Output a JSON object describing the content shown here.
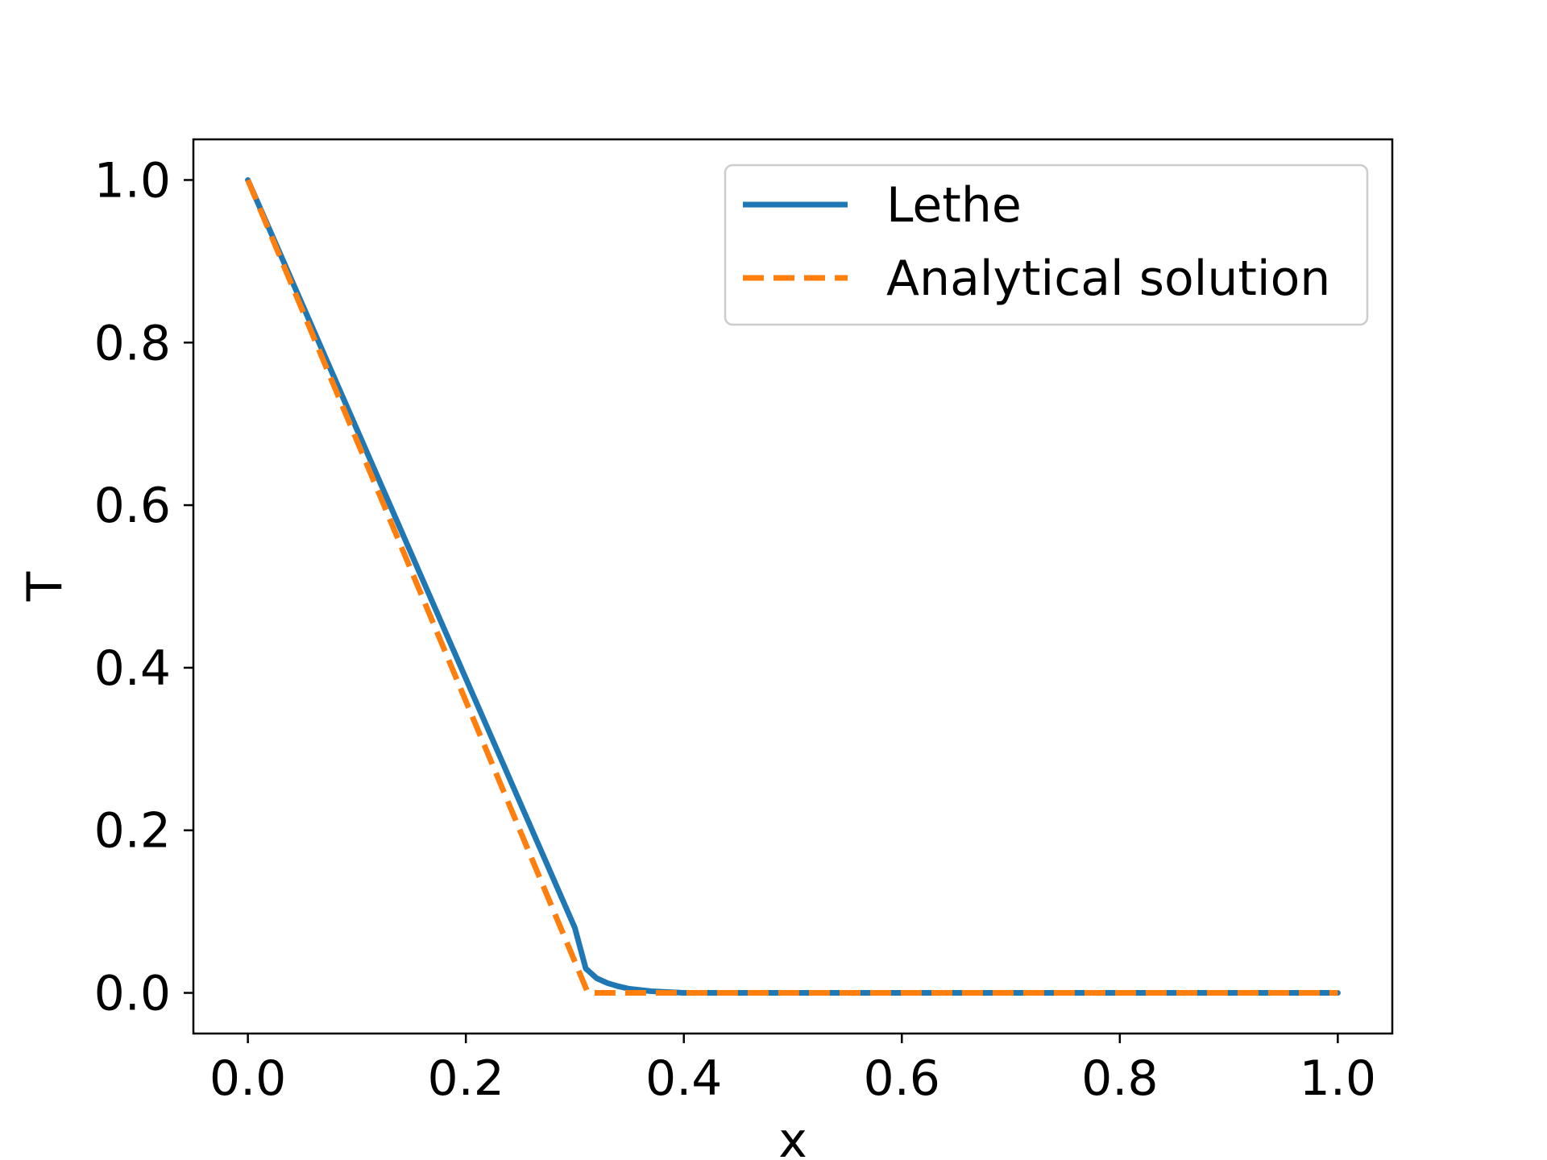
{
  "chart_data": {
    "type": "line",
    "title": "",
    "xlabel": "x",
    "ylabel": "T",
    "xlim": [
      -0.05,
      1.05
    ],
    "ylim": [
      -0.05,
      1.05
    ],
    "grid": false,
    "legend_position": "top-right",
    "xticks": [
      0.0,
      0.2,
      0.4,
      0.6,
      0.8,
      1.0
    ],
    "xtick_labels": [
      "0.0",
      "0.2",
      "0.4",
      "0.6",
      "0.8",
      "1.0"
    ],
    "yticks": [
      0.0,
      0.2,
      0.4,
      0.6,
      0.8,
      1.0
    ],
    "ytick_labels": [
      "0.0",
      "0.2",
      "0.4",
      "0.6",
      "0.8",
      "1.0"
    ],
    "series": [
      {
        "name": "Lethe",
        "color": "#1f77b4",
        "style": "solid",
        "x": [
          0.0,
          0.05,
          0.1,
          0.15,
          0.2,
          0.25,
          0.3,
          0.31,
          0.32,
          0.33,
          0.34,
          0.35,
          0.37,
          0.4,
          0.5,
          0.6,
          0.7,
          0.8,
          0.9,
          1.0
        ],
        "y": [
          1.0,
          0.8467,
          0.6933,
          0.54,
          0.3867,
          0.2333,
          0.08,
          0.03,
          0.018,
          0.012,
          0.008,
          0.005,
          0.002,
          0.0,
          0.0,
          0.0,
          0.0,
          0.0,
          0.0,
          0.0
        ]
      },
      {
        "name": "Analytical solution",
        "color": "#ff7f0e",
        "style": "dashed",
        "x": [
          0.0,
          0.312,
          0.32,
          0.4,
          0.5,
          0.6,
          0.7,
          0.8,
          0.9,
          1.0
        ],
        "y": [
          1.0,
          0.0,
          0.0,
          0.0,
          0.0,
          0.0,
          0.0,
          0.0,
          0.0,
          0.0
        ]
      }
    ]
  }
}
